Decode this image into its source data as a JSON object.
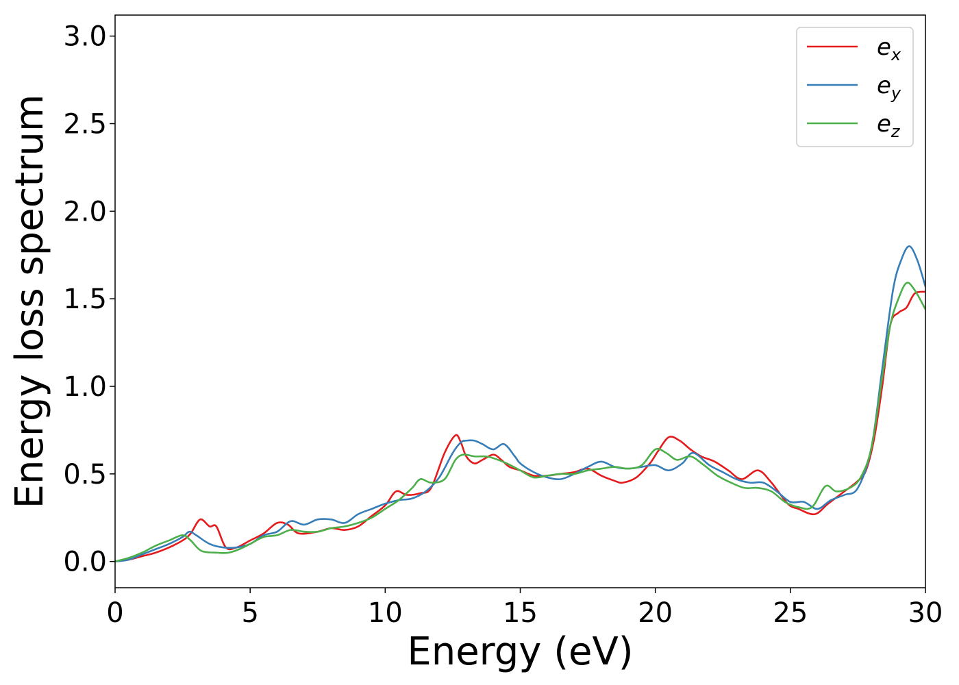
{
  "chart_data": {
    "type": "line",
    "xlabel": "Energy (eV)",
    "ylabel": "Energy loss spectrum",
    "xlim": [
      0,
      30
    ],
    "ylim": [
      -0.15,
      3.12
    ],
    "xticks": [
      "0",
      "5",
      "10",
      "15",
      "20",
      "25",
      "30"
    ],
    "xtick_values": [
      0,
      5,
      10,
      15,
      20,
      25,
      30
    ],
    "yticks": [
      "0.0",
      "0.5",
      "1.0",
      "1.5",
      "2.0",
      "2.5",
      "3.0"
    ],
    "ytick_values": [
      0.0,
      0.5,
      1.0,
      1.5,
      2.0,
      2.5,
      3.0
    ],
    "grid": false,
    "legend_placement": "top-right",
    "series": [
      {
        "name": "e",
        "subscript": "x",
        "color": "#e41a1c",
        "x": [
          0,
          0.5,
          1,
          1.5,
          2,
          2.5,
          2.8,
          3.15,
          3.5,
          3.75,
          4.1,
          4.5,
          5,
          5.5,
          6,
          6.4,
          6.8,
          7.5,
          8,
          8.5,
          9,
          9.5,
          10,
          10.4,
          10.8,
          11.3,
          11.7,
          12.2,
          12.6,
          12.8,
          13,
          13.3,
          13.6,
          14,
          14.3,
          14.6,
          15,
          15.5,
          16,
          16.5,
          17,
          17.5,
          18,
          18.5,
          18.8,
          19.3,
          19.8,
          20.1,
          20.5,
          20.9,
          21.3,
          21.7,
          22.2,
          22.7,
          23.2,
          23.8,
          24.3,
          24.9,
          25.3,
          25.9,
          26.4,
          27,
          27.5,
          27.8,
          28.1,
          28.4,
          28.7,
          29,
          29.3,
          29.6,
          30
        ],
        "y": [
          0,
          0.01,
          0.03,
          0.05,
          0.08,
          0.12,
          0.16,
          0.24,
          0.2,
          0.2,
          0.08,
          0.08,
          0.12,
          0.16,
          0.22,
          0.21,
          0.16,
          0.17,
          0.19,
          0.18,
          0.2,
          0.26,
          0.32,
          0.4,
          0.38,
          0.39,
          0.42,
          0.62,
          0.72,
          0.68,
          0.6,
          0.56,
          0.58,
          0.61,
          0.58,
          0.54,
          0.52,
          0.49,
          0.49,
          0.5,
          0.51,
          0.53,
          0.49,
          0.46,
          0.45,
          0.48,
          0.56,
          0.63,
          0.71,
          0.69,
          0.64,
          0.6,
          0.57,
          0.52,
          0.47,
          0.52,
          0.45,
          0.33,
          0.3,
          0.27,
          0.33,
          0.4,
          0.46,
          0.52,
          0.7,
          1.0,
          1.35,
          1.42,
          1.45,
          1.53,
          1.54
        ]
      },
      {
        "name": "e",
        "subscript": "y",
        "color": "#377eb8",
        "x": [
          0,
          0.5,
          1,
          1.5,
          2,
          2.5,
          2.75,
          3,
          3.5,
          4,
          4.5,
          5,
          5.5,
          6,
          6.5,
          7,
          7.5,
          8,
          8.5,
          9,
          9.5,
          10,
          10.5,
          11,
          11.5,
          12,
          12.5,
          12.8,
          13,
          13.3,
          13.6,
          14,
          14.4,
          14.8,
          15,
          15.5,
          16,
          16.5,
          17,
          17.5,
          18,
          18.5,
          19,
          19.5,
          20,
          20.5,
          21,
          21.4,
          22,
          22.5,
          23,
          23.5,
          24,
          24.5,
          25,
          25.5,
          26,
          26.5,
          27,
          27.5,
          28,
          28.4,
          28.8,
          29.1,
          29.4,
          29.7,
          30
        ],
        "y": [
          0,
          0.01,
          0.04,
          0.07,
          0.1,
          0.14,
          0.17,
          0.15,
          0.1,
          0.08,
          0.08,
          0.1,
          0.15,
          0.17,
          0.23,
          0.21,
          0.24,
          0.24,
          0.22,
          0.27,
          0.3,
          0.33,
          0.35,
          0.36,
          0.4,
          0.48,
          0.62,
          0.68,
          0.69,
          0.69,
          0.67,
          0.64,
          0.67,
          0.6,
          0.56,
          0.51,
          0.48,
          0.47,
          0.5,
          0.54,
          0.57,
          0.54,
          0.53,
          0.54,
          0.55,
          0.52,
          0.56,
          0.62,
          0.55,
          0.51,
          0.47,
          0.45,
          0.45,
          0.4,
          0.34,
          0.34,
          0.3,
          0.35,
          0.38,
          0.42,
          0.65,
          1.1,
          1.55,
          1.72,
          1.8,
          1.72,
          1.57
        ]
      },
      {
        "name": "e",
        "subscript": "z",
        "color": "#4daf4a",
        "x": [
          0,
          0.5,
          1,
          1.5,
          2,
          2.5,
          2.8,
          3.2,
          3.8,
          4.2,
          4.6,
          5,
          5.5,
          6,
          6.5,
          7,
          7.5,
          8,
          8.5,
          9,
          9.5,
          10,
          10.5,
          11,
          11.3,
          11.7,
          12.2,
          12.6,
          12.9,
          13.3,
          13.7,
          14,
          14.5,
          15,
          15.5,
          16,
          16.5,
          17,
          17.5,
          18,
          18.5,
          19,
          19.5,
          20,
          20.4,
          20.8,
          21.3,
          21.8,
          22.3,
          22.8,
          23.3,
          23.8,
          24.3,
          24.8,
          25.3,
          25.8,
          26.3,
          26.7,
          27.2,
          27.6,
          28,
          28.4,
          28.7,
          29,
          29.3,
          29.6,
          30
        ],
        "y": [
          0,
          0.02,
          0.05,
          0.09,
          0.12,
          0.15,
          0.12,
          0.06,
          0.05,
          0.05,
          0.07,
          0.1,
          0.14,
          0.15,
          0.18,
          0.17,
          0.17,
          0.19,
          0.2,
          0.22,
          0.25,
          0.3,
          0.35,
          0.42,
          0.47,
          0.45,
          0.47,
          0.58,
          0.61,
          0.6,
          0.6,
          0.59,
          0.56,
          0.52,
          0.48,
          0.49,
          0.5,
          0.5,
          0.52,
          0.53,
          0.54,
          0.53,
          0.55,
          0.64,
          0.62,
          0.58,
          0.6,
          0.55,
          0.49,
          0.45,
          0.42,
          0.42,
          0.4,
          0.34,
          0.31,
          0.31,
          0.43,
          0.4,
          0.42,
          0.48,
          0.65,
          1.05,
          1.35,
          1.5,
          1.59,
          1.55,
          1.44
        ]
      }
    ]
  }
}
